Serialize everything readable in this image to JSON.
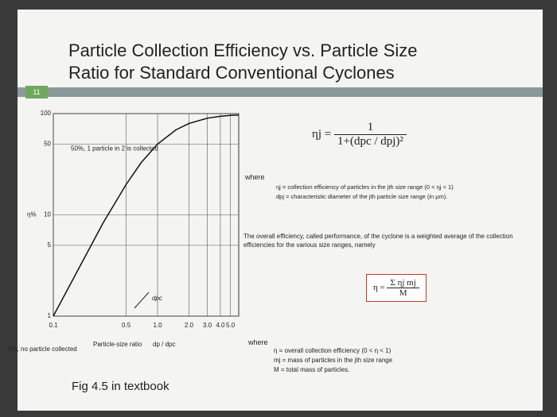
{
  "slide": {
    "title_lines": [
      "Particle Collection Efficiency vs. Particle Size",
      "Ratio for Standard Conventional Cyclones"
    ],
    "number": "11",
    "caption": "Fig 4.5 in textbook",
    "eq1": {
      "lhs": "ηj =",
      "num": "1",
      "den": "1+(dpc / dpj)²"
    },
    "where1": "where",
    "defs1": [
      "ηj = collection efficiency of particles in the jth size range (0 < ηj < 1)",
      "dpj = characteristic diameter of the jth particle size range (in μm)."
    ],
    "paragraph": "The overall efficiency, called performance, of the cyclone is a weighted average of the collection efficiencies for the various size ranges, namely",
    "eq2": {
      "lhs": "η =",
      "num": "Σ ηj mj",
      "den": "M"
    },
    "where2": "where",
    "defs2": [
      "η = overall collection efficiency (0 < η < 1)",
      "mj = mass of particles in the jth size range",
      "M = total mass of particles."
    ]
  },
  "chart_data": {
    "type": "line",
    "y_label": "η%",
    "x_label": "Particle-size ratio",
    "x_label_ratio": "dp / dpc",
    "annotations": [
      "50%, 1 particle in 2 is collected",
      "0%, no particle collected",
      "dpc"
    ],
    "x": [
      0.1,
      0.2,
      0.3,
      0.5,
      0.7,
      1.0,
      1.5,
      2.0,
      3.0,
      4.0,
      5.0,
      6.0
    ],
    "series": [
      {
        "name": "η",
        "color": "#111111",
        "values": [
          1,
          3.8,
          8.3,
          20,
          33,
          50,
          69,
          80,
          90,
          94,
          96,
          97
        ]
      }
    ],
    "log_x": true,
    "log_y": true,
    "xlim": [
      0.1,
      6
    ],
    "ylim": [
      1,
      100
    ],
    "xticks": [
      0.1,
      0.5,
      {
        "value": 1,
        "label": "1.0"
      },
      {
        "value": 2,
        "label": "2.0"
      },
      {
        "value": 3,
        "label": "3.0"
      },
      {
        "value": 4,
        "label": "4.0"
      },
      {
        "value": 5,
        "label": "5.0"
      }
    ],
    "yticks": [
      1,
      5,
      10,
      50,
      100
    ],
    "grid": true
  }
}
